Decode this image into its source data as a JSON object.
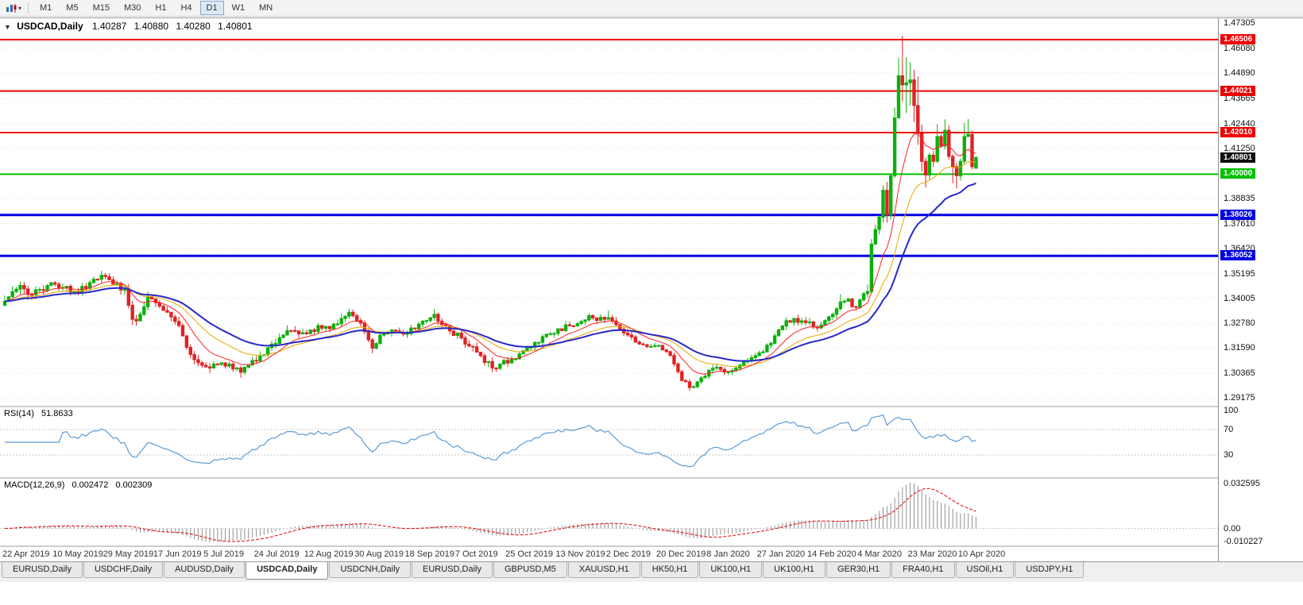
{
  "colors": {
    "candle_up": "#0cb00c",
    "candle_down": "#e02222",
    "ma_fast": "#ff2020",
    "ma_mid": "#e8a800",
    "ma_slow": "#2828c8",
    "rsi_line": "#5b9bd5",
    "macd_hist": "#909090",
    "macd_signal": "#e00000",
    "grid": "#e2e2e2",
    "axis_text": "#111111"
  },
  "toolbar": {
    "timeframes": [
      "M1",
      "M5",
      "M15",
      "M30",
      "H1",
      "H4",
      "D1",
      "W1",
      "MN"
    ],
    "active_timeframe": "D1"
  },
  "chart_header": {
    "collapse_icon": "▼",
    "symbol": "USDCAD,Daily",
    "open": "1.40287",
    "high": "1.40880",
    "low": "1.40280",
    "close": "1.40801"
  },
  "indicators": {
    "rsi": {
      "label": "RSI(14)",
      "value": "51.8633",
      "axis_labels": [
        "100",
        "70",
        "30"
      ],
      "levels": [
        70,
        30
      ]
    },
    "macd": {
      "label": "MACD(12,26,9)",
      "value_main": "0.002472",
      "value_signal": "0.002309",
      "axis_max": "0.032595",
      "axis_zero": "0.00",
      "axis_min": "-0.010227"
    }
  },
  "tabs": {
    "items": [
      "EURUSD,Daily",
      "USDCHF,Daily",
      "AUDUSD,Daily",
      "USDCAD,Daily",
      "USDCNH,Daily",
      "EURUSD,Daily",
      "GBPUSD,M5",
      "XAUUSD,H1",
      "HK50,H1",
      "UK100,H1",
      "UK100,H1",
      "GER30,H1",
      "FRA40,H1",
      "USOil,H1",
      "USDJPY,H1"
    ],
    "active_index": 3
  },
  "chart_data": {
    "type": "candlestick",
    "symbol": "USDCAD",
    "timeframe": "Daily",
    "n_candles": 252,
    "y_ticks": [
      "1.47305",
      "1.46080",
      "1.44890",
      "1.43665",
      "1.42440",
      "1.41250",
      "1.38835",
      "1.37610",
      "1.36420",
      "1.35195",
      "1.34005",
      "1.32780",
      "1.31590",
      "1.30365",
      "1.29175"
    ],
    "x_labels": [
      "22 Apr 2019",
      "10 May 2019",
      "29 May 2019",
      "17 Jun 2019",
      "5 Jul 2019",
      "24 Jul 2019",
      "12 Aug 2019",
      "30 Aug 2019",
      "18 Sep 2019",
      "7 Oct 2019",
      "25 Oct 2019",
      "13 Nov 2019",
      "2 Dec 2019",
      "20 Dec 2019",
      "8 Jan 2020",
      "27 Jan 2020",
      "14 Feb 2020",
      "4 Mar 2020",
      "23 Mar 2020",
      "10 Apr 2020"
    ],
    "x_label_step": 13,
    "hlines": [
      {
        "price": 1.46506,
        "label": "1.46506",
        "color": "#ee0000",
        "width": 2
      },
      {
        "price": 1.44021,
        "label": "1.44021",
        "color": "#ee0000",
        "width": 2
      },
      {
        "price": 1.4201,
        "label": "1.42010",
        "color": "#ee0000",
        "width": 2
      },
      {
        "price": 1.4,
        "label": "1.40000",
        "color": "#00c000",
        "width": 2
      },
      {
        "price": 1.38026,
        "label": "1.38026",
        "color": "#0000e0",
        "width": 3
      },
      {
        "price": 1.36052,
        "label": "1.36052",
        "color": "#0000e0",
        "width": 3
      }
    ],
    "current_price": {
      "price": 1.40801,
      "label": "1.40801",
      "bg": "#101010"
    },
    "last_candle": {
      "open": 1.40287,
      "high": 1.4088,
      "low": 1.4028,
      "close": 1.40801
    },
    "moving_averages": [
      {
        "name": "ma-mid-yellow",
        "type": "ema",
        "period": 21,
        "color_key": "ma_mid",
        "width": 1
      },
      {
        "name": "ma-fast-red",
        "type": "ema",
        "period": 10,
        "color_key": "ma_fast",
        "width": 1
      },
      {
        "name": "ma-slow-blue",
        "type": "ema",
        "period": 34,
        "color_key": "ma_slow",
        "width": 2
      }
    ],
    "anchors": [
      [
        0,
        1.3385,
        0.005,
        null,
        null
      ],
      [
        2,
        1.3432,
        0.005,
        null,
        null
      ],
      [
        4,
        1.3462,
        0.004,
        1.348,
        null
      ],
      [
        6,
        1.3418,
        0.004,
        null,
        null
      ],
      [
        9,
        1.3442,
        0.004,
        null,
        null
      ],
      [
        12,
        1.3475,
        0.004,
        null,
        null
      ],
      [
        15,
        1.3452,
        0.0035,
        null,
        null
      ],
      [
        18,
        1.3432,
        0.0035,
        null,
        null
      ],
      [
        21,
        1.3448,
        0.0035,
        null,
        null
      ],
      [
        24,
        1.3492,
        0.004,
        null,
        null
      ],
      [
        26,
        1.3505,
        0.004,
        1.3522,
        null
      ],
      [
        28,
        1.3468,
        0.0035,
        null,
        null
      ],
      [
        31,
        1.3442,
        0.004,
        null,
        null
      ],
      [
        33,
        1.3298,
        0.005,
        null,
        1.327
      ],
      [
        35,
        1.3322,
        0.004,
        null,
        null
      ],
      [
        37,
        1.3405,
        0.004,
        1.3432,
        null
      ],
      [
        39,
        1.3378,
        0.0035,
        null,
        null
      ],
      [
        42,
        1.3332,
        0.0035,
        null,
        null
      ],
      [
        44,
        1.3288,
        0.004,
        null,
        null
      ],
      [
        46,
        1.3218,
        0.004,
        null,
        null
      ],
      [
        48,
        1.3128,
        0.004,
        null,
        null
      ],
      [
        50,
        1.3088,
        0.0035,
        null,
        null
      ],
      [
        53,
        1.3062,
        0.003,
        null,
        1.3038
      ],
      [
        56,
        1.3088,
        0.003,
        null,
        null
      ],
      [
        59,
        1.3058,
        0.003,
        null,
        null
      ],
      [
        61,
        1.3042,
        0.003,
        null,
        1.3016
      ],
      [
        63,
        1.3078,
        0.003,
        null,
        null
      ],
      [
        66,
        1.3122,
        0.0035,
        null,
        null
      ],
      [
        69,
        1.3178,
        0.0035,
        null,
        null
      ],
      [
        72,
        1.3222,
        0.004,
        null,
        null
      ],
      [
        75,
        1.3242,
        0.004,
        null,
        null
      ],
      [
        78,
        1.3228,
        0.0035,
        null,
        null
      ],
      [
        81,
        1.3268,
        0.0035,
        null,
        null
      ],
      [
        84,
        1.3252,
        0.0035,
        null,
        null
      ],
      [
        87,
        1.3302,
        0.0035,
        null,
        null
      ],
      [
        89,
        1.3332,
        0.004,
        1.3348,
        null
      ],
      [
        91,
        1.3292,
        0.0035,
        null,
        null
      ],
      [
        93,
        1.3238,
        0.004,
        null,
        null
      ],
      [
        95,
        1.3158,
        0.0035,
        null,
        1.3134
      ],
      [
        97,
        1.3222,
        0.003,
        null,
        null
      ],
      [
        100,
        1.3246,
        0.003,
        null,
        null
      ],
      [
        103,
        1.3226,
        0.003,
        null,
        null
      ],
      [
        106,
        1.3252,
        0.003,
        null,
        null
      ],
      [
        109,
        1.3292,
        0.0035,
        null,
        null
      ],
      [
        111,
        1.3322,
        0.0035,
        1.3347,
        null
      ],
      [
        113,
        1.3272,
        0.0035,
        null,
        null
      ],
      [
        115,
        1.3242,
        0.003,
        null,
        null
      ],
      [
        118,
        1.3208,
        0.003,
        null,
        null
      ],
      [
        120,
        1.3168,
        0.0035,
        null,
        null
      ],
      [
        123,
        1.3122,
        0.0035,
        null,
        null
      ],
      [
        126,
        1.3062,
        0.0035,
        null,
        1.3042
      ],
      [
        128,
        1.3082,
        0.003,
        null,
        null
      ],
      [
        131,
        1.3106,
        0.003,
        null,
        null
      ],
      [
        134,
        1.3146,
        0.003,
        null,
        null
      ],
      [
        137,
        1.3186,
        0.003,
        null,
        null
      ],
      [
        140,
        1.3226,
        0.003,
        null,
        null
      ],
      [
        143,
        1.3252,
        0.003,
        null,
        null
      ],
      [
        146,
        1.3266,
        0.003,
        null,
        null
      ],
      [
        149,
        1.3288,
        0.003,
        null,
        null
      ],
      [
        151,
        1.3316,
        0.003,
        1.3328,
        null
      ],
      [
        153,
        1.3292,
        0.003,
        null,
        null
      ],
      [
        156,
        1.3306,
        0.0035,
        1.334,
        null
      ],
      [
        158,
        1.3272,
        0.003,
        null,
        null
      ],
      [
        160,
        1.3232,
        0.003,
        null,
        null
      ],
      [
        163,
        1.3188,
        0.003,
        null,
        null
      ],
      [
        166,
        1.3166,
        0.0025,
        null,
        null
      ],
      [
        169,
        1.3172,
        0.0025,
        null,
        null
      ],
      [
        171,
        1.3142,
        0.0025,
        null,
        null
      ],
      [
        173,
        1.3082,
        0.003,
        null,
        null
      ],
      [
        175,
        1.3002,
        0.003,
        null,
        null
      ],
      [
        177,
        1.2968,
        0.0025,
        null,
        1.2952
      ],
      [
        179,
        1.2996,
        0.0025,
        null,
        null
      ],
      [
        182,
        1.3052,
        0.0025,
        null,
        null
      ],
      [
        184,
        1.3066,
        0.0025,
        null,
        null
      ],
      [
        186,
        1.3042,
        0.0025,
        null,
        null
      ],
      [
        189,
        1.3062,
        0.0025,
        null,
        null
      ],
      [
        192,
        1.3096,
        0.0025,
        null,
        null
      ],
      [
        195,
        1.3136,
        0.003,
        null,
        null
      ],
      [
        198,
        1.3182,
        0.003,
        null,
        null
      ],
      [
        201,
        1.3266,
        0.0035,
        null,
        null
      ],
      [
        204,
        1.3302,
        0.003,
        null,
        null
      ],
      [
        207,
        1.3282,
        0.003,
        null,
        null
      ],
      [
        210,
        1.3256,
        0.003,
        null,
        null
      ],
      [
        212,
        1.3292,
        0.003,
        null,
        null
      ],
      [
        214,
        1.3322,
        0.003,
        null,
        null
      ],
      [
        216,
        1.3382,
        0.0045,
        1.342,
        null
      ],
      [
        218,
        1.3396,
        0.004,
        null,
        null
      ],
      [
        220,
        1.3356,
        0.004,
        null,
        null
      ],
      [
        221,
        1.3392,
        0.004,
        null,
        null
      ],
      [
        222,
        1.3422,
        0.004,
        null,
        null
      ],
      [
        223,
        1.3432,
        0.0045,
        1.3466,
        null
      ],
      [
        224,
        1.3662,
        0.006,
        1.3686,
        1.3422
      ],
      [
        225,
        1.3732,
        0.006,
        null,
        null
      ],
      [
        226,
        1.3792,
        0.007,
        null,
        null
      ],
      [
        227,
        1.3922,
        0.007,
        1.3946,
        null
      ],
      [
        228,
        1.3802,
        0.008,
        null,
        1.3766
      ],
      [
        229,
        1.3992,
        0.008,
        null,
        null
      ],
      [
        230,
        1.4272,
        0.009,
        1.4322,
        1.3982
      ],
      [
        231,
        1.4476,
        0.009,
        1.4562,
        1.4282
      ],
      [
        232,
        1.4432,
        0.01,
        1.4669,
        1.4352
      ],
      [
        233,
        1.4442,
        0.01,
        1.4566,
        1.4296
      ],
      [
        234,
        1.4456,
        0.009,
        1.4542,
        1.4332
      ],
      [
        235,
        1.4332,
        0.008,
        null,
        1.4252
      ],
      [
        236,
        1.4196,
        0.008,
        1.4472,
        1.4142
      ],
      [
        237,
        1.4062,
        0.007,
        null,
        1.4012
      ],
      [
        238,
        1.3996,
        0.006,
        null,
        1.3936
      ],
      [
        239,
        1.4092,
        0.006,
        null,
        null
      ],
      [
        240,
        1.4062,
        0.005,
        null,
        null
      ],
      [
        241,
        1.4182,
        0.005,
        1.4242,
        null
      ],
      [
        242,
        1.4136,
        0.005,
        null,
        null
      ],
      [
        243,
        1.4212,
        0.005,
        1.4265,
        null
      ],
      [
        244,
        1.4086,
        0.005,
        null,
        null
      ],
      [
        245,
        1.4036,
        0.005,
        null,
        1.3956
      ],
      [
        246,
        1.3992,
        0.004,
        null,
        1.3932
      ],
      [
        247,
        1.4062,
        0.004,
        null,
        null
      ],
      [
        248,
        1.4182,
        0.004,
        1.4248,
        null
      ],
      [
        249,
        1.4192,
        0.004,
        1.4266,
        null
      ],
      [
        250,
        1.4036,
        0.004,
        null,
        null
      ],
      [
        251,
        1.40801,
        0.002,
        null,
        null
      ]
    ]
  }
}
